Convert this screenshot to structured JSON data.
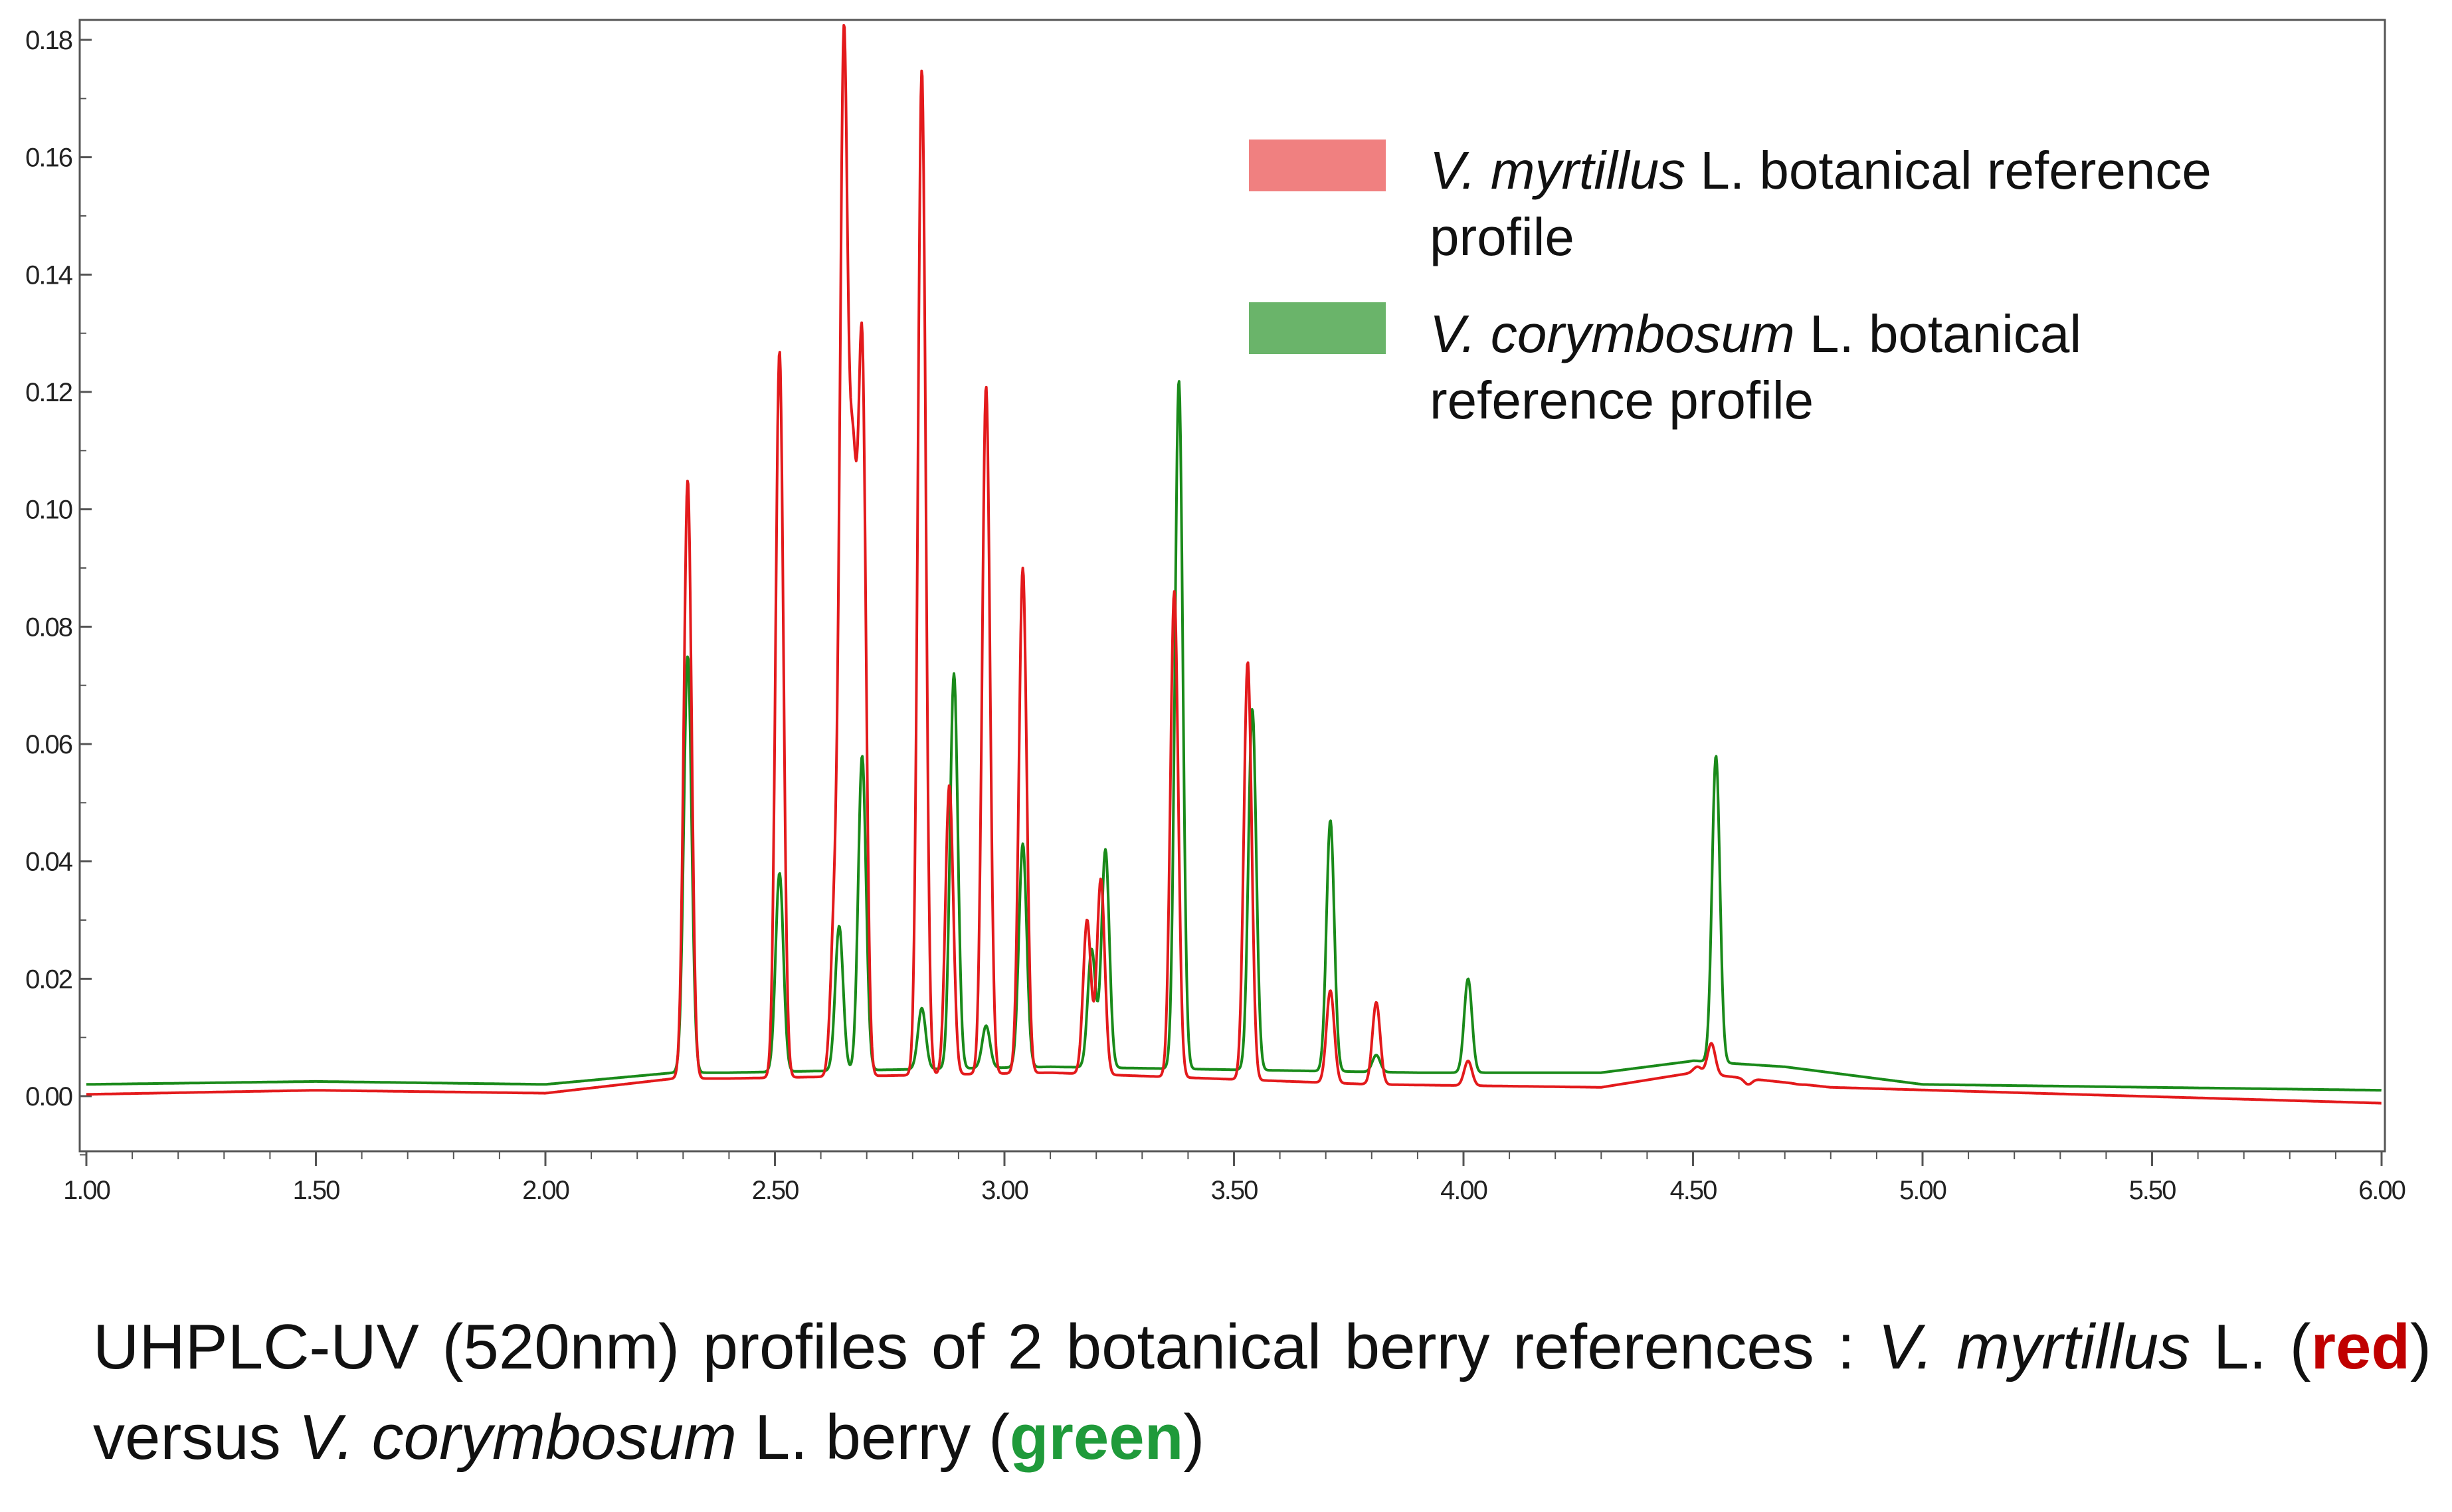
{
  "chart_data": {
    "type": "line",
    "xlim": [
      1.0,
      6.0
    ],
    "ylim": [
      -0.01,
      0.18
    ],
    "x_ticks": [
      "1.00",
      "1.50",
      "2.00",
      "2.50",
      "3.00",
      "3.50",
      "4.00",
      "4.50",
      "5.00",
      "5.50",
      "6.00"
    ],
    "y_ticks": [
      "0.00",
      "0.02",
      "0.04",
      "0.06",
      "0.08",
      "0.10",
      "0.12",
      "0.14",
      "0.16",
      "0.18"
    ],
    "grid": false,
    "legend_position": "top-right",
    "series": [
      {
        "name": "V. myrtillus L. botanical reference profile",
        "color": "#f08080",
        "line_color": "#e31a1c",
        "baseline": [
          [
            1.0,
            0.0003
          ],
          [
            1.5,
            0.001
          ],
          [
            2.0,
            0.0005
          ],
          [
            2.28,
            0.003
          ],
          [
            2.4,
            0.003
          ],
          [
            3.1,
            0.004
          ],
          [
            3.8,
            0.002
          ],
          [
            4.3,
            0.0015
          ],
          [
            4.5,
            0.004
          ],
          [
            4.8,
            0.0015
          ],
          [
            6.0,
            -0.0012
          ]
        ],
        "peaks": [
          {
            "x": 2.31,
            "y": 0.105
          },
          {
            "x": 2.51,
            "y": 0.127
          },
          {
            "x": 2.63,
            "y": 0.03
          },
          {
            "x": 2.65,
            "y": 0.175
          },
          {
            "x": 2.67,
            "y": 0.096
          },
          {
            "x": 2.69,
            "y": 0.125
          },
          {
            "x": 2.82,
            "y": 0.175
          },
          {
            "x": 2.88,
            "y": 0.053
          },
          {
            "x": 2.96,
            "y": 0.121
          },
          {
            "x": 3.04,
            "y": 0.09
          },
          {
            "x": 3.18,
            "y": 0.03
          },
          {
            "x": 3.21,
            "y": 0.037
          },
          {
            "x": 3.37,
            "y": 0.086
          },
          {
            "x": 3.53,
            "y": 0.074
          },
          {
            "x": 3.71,
            "y": 0.018
          },
          {
            "x": 3.81,
            "y": 0.016
          },
          {
            "x": 4.01,
            "y": 0.006
          },
          {
            "x": 4.51,
            "y": 0.005
          },
          {
            "x": 4.54,
            "y": 0.009
          },
          {
            "x": 4.62,
            "y": 0.002
          },
          {
            "x": 4.73,
            "y": 0.002
          }
        ]
      },
      {
        "name": "V. corymbosum L. botanical reference profile",
        "color": "#6ab46a",
        "line_color": "#1a8a1a",
        "baseline": [
          [
            1.0,
            0.002
          ],
          [
            1.5,
            0.0025
          ],
          [
            2.0,
            0.002
          ],
          [
            2.28,
            0.004
          ],
          [
            2.4,
            0.004
          ],
          [
            3.1,
            0.005
          ],
          [
            3.9,
            0.004
          ],
          [
            4.3,
            0.004
          ],
          [
            4.5,
            0.006
          ],
          [
            4.7,
            0.005
          ],
          [
            5.0,
            0.002
          ],
          [
            6.0,
            0.001
          ]
        ],
        "peaks": [
          {
            "x": 2.31,
            "y": 0.075
          },
          {
            "x": 2.51,
            "y": 0.038
          },
          {
            "x": 2.64,
            "y": 0.029
          },
          {
            "x": 2.69,
            "y": 0.058
          },
          {
            "x": 2.82,
            "y": 0.015
          },
          {
            "x": 2.89,
            "y": 0.072
          },
          {
            "x": 2.96,
            "y": 0.012
          },
          {
            "x": 3.04,
            "y": 0.043
          },
          {
            "x": 3.19,
            "y": 0.025
          },
          {
            "x": 3.22,
            "y": 0.042
          },
          {
            "x": 3.38,
            "y": 0.122
          },
          {
            "x": 3.54,
            "y": 0.066
          },
          {
            "x": 3.71,
            "y": 0.047
          },
          {
            "x": 3.81,
            "y": 0.007
          },
          {
            "x": 4.01,
            "y": 0.02
          },
          {
            "x": 4.51,
            "y": 0.006
          },
          {
            "x": 4.55,
            "y": 0.058
          }
        ]
      }
    ]
  },
  "legend": {
    "items": [
      {
        "italic": "V. myrtillus",
        "rest": " L. botanical reference",
        "line2": "profile",
        "color": "#f08080"
      },
      {
        "italic": "V. corymbosum",
        "rest": " L. botanical",
        "line2": "reference profile",
        "color": "#6ab46a"
      }
    ]
  },
  "caption": {
    "part1": "UHPLC-UV (520nm) profiles of 2 botanical berry references : ",
    "species1": "V. myrtillus",
    "part2": " L. (",
    "red_word": "red",
    "part3": ") versus ",
    "species2": "V. corymbosum",
    "part4": " L. berry (",
    "green_word": "green",
    "part5": ")"
  }
}
